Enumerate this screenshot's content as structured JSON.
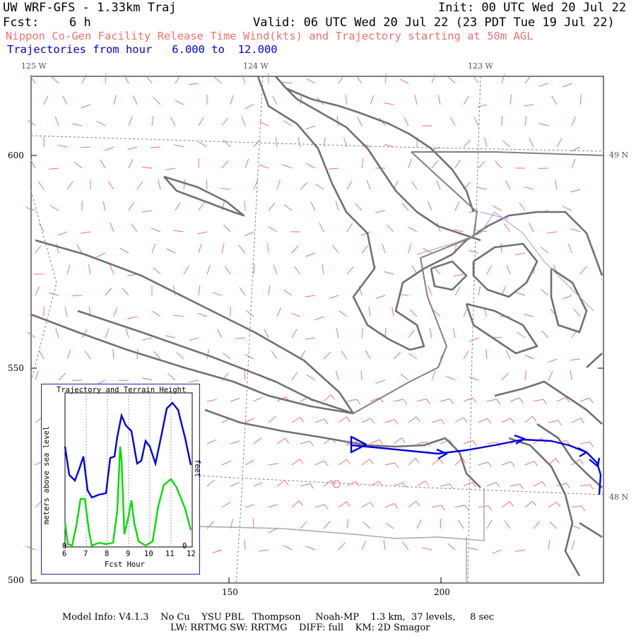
{
  "header": {
    "model": "UW WRF-GFS - 1.33km Traj",
    "init": "Init: 00 UTC Wed 20 Jul 22",
    "forecast_label": "Fcst:",
    "forecast_value": "6 h",
    "valid": "Valid: 06 UTC Wed 20 Jul 22 (23 PDT Tue 19 Jul 22)",
    "description": "Nippon Co-Gen Facility Release Time Wind(kts) and Trajectory starting at 50m AGL",
    "trajectory_range": "Trajectories from hour   6.000 to  12.000"
  },
  "map": {
    "longitudes": [
      "125 W",
      "124 W",
      "123 W"
    ],
    "latitudes": [
      "49 N",
      "48 N"
    ],
    "y_ticks": [
      "600",
      "550",
      "500"
    ],
    "x_ticks": [
      "150",
      "200"
    ],
    "colors": {
      "coast": "#707070",
      "wind_barb": "#f07070",
      "trajectory": "#0000dd",
      "grid": "#808080",
      "border": "#a070d0"
    }
  },
  "inset": {
    "title": "Trajectory and Terrain Height",
    "ylabel_left": "meters above sea level",
    "ylabel_right": "feet",
    "xlabel": "Fcst Hour",
    "x_ticks": [
      "6",
      "7",
      "8",
      "9",
      "10",
      "11",
      "12"
    ],
    "zero_left": "0",
    "zero_right": "0",
    "series_colors": {
      "trajectory": "#0000dd",
      "terrain": "#00dd00"
    }
  },
  "footer": {
    "line1": "Model Info: V4.1.3    No Cu    YSU PBL   Thompson     Noah-MP    1.3 km,  37 levels,     8 sec",
    "line2": "LW: RRTMG SW: RRTMG    DIFF: full    KM: 2D Smagor"
  }
}
